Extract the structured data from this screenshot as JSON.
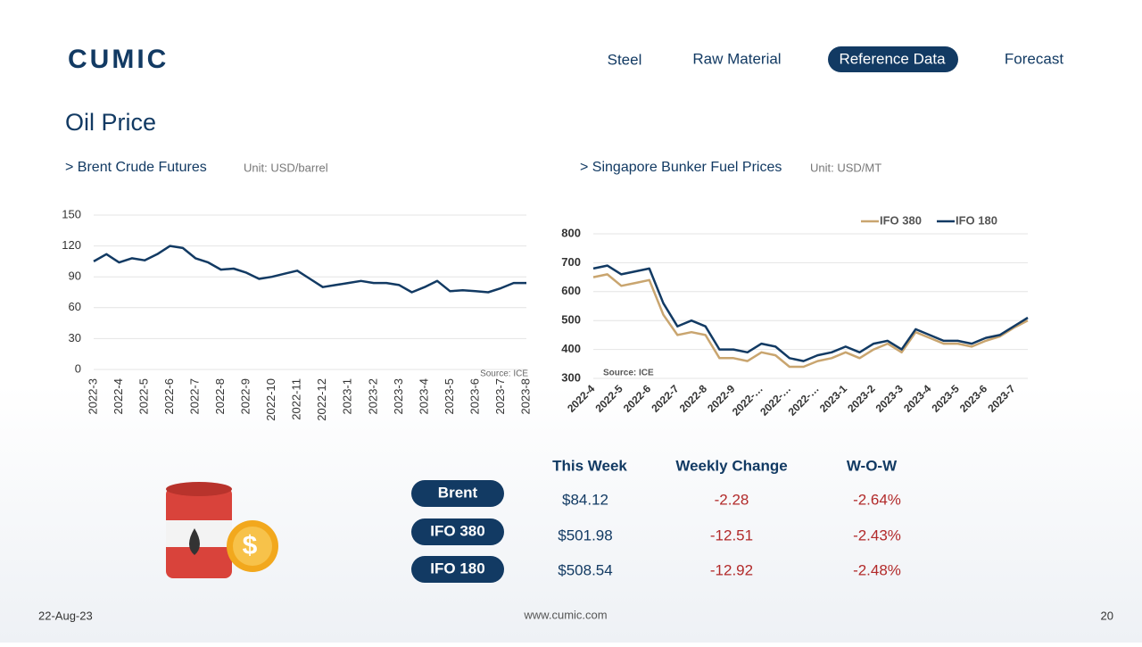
{
  "header": {
    "logo": "CUMIC",
    "nav": [
      "Steel",
      "Raw Material",
      "Reference Data",
      "Forecast"
    ],
    "title": "Oil Price"
  },
  "chart_data": [
    {
      "type": "line",
      "title": "> Brent Crude Futures",
      "unit": "Unit: USD/barrel",
      "source": "Source: ICE",
      "categories": [
        "2022-3",
        null,
        "2022-4",
        null,
        "2022-5",
        null,
        "2022-6",
        null,
        "2022-7",
        null,
        "2022-8",
        null,
        "2022-9",
        null,
        "2022-10",
        null,
        "2022-11",
        null,
        "2022-12",
        null,
        "2023-1",
        null,
        "2023-2",
        null,
        "2023-3",
        null,
        "2023-4",
        null,
        "2023-5",
        null,
        "2023-6",
        null,
        "2023-7",
        null,
        "2023-8"
      ],
      "values": [
        105,
        112,
        104,
        108,
        106,
        112,
        120,
        118,
        108,
        104,
        97,
        98,
        94,
        88,
        90,
        93,
        96,
        88,
        80,
        82,
        84,
        86,
        84,
        84,
        82,
        75,
        80,
        86,
        76,
        77,
        76,
        75,
        79,
        84,
        84
      ],
      "color": "#123a63",
      "ylim": [
        0,
        150
      ],
      "yticks": [
        0,
        30,
        60,
        90,
        120,
        150
      ],
      "grid": true
    },
    {
      "type": "line",
      "title": "> Singapore Bunker Fuel Prices",
      "unit": "Unit: USD/MT",
      "source": "Source: ICE",
      "categories": [
        "2022-4",
        null,
        "2022-5",
        null,
        "2022-6",
        null,
        "2022-7",
        null,
        "2022-8",
        null,
        "2022-9",
        null,
        "2022-…",
        null,
        "2022-…",
        null,
        "2022-…",
        null,
        "2023-1",
        null,
        "2023-2",
        null,
        "2023-3",
        null,
        "2023-4",
        null,
        "2023-5",
        null,
        "2023-6",
        null,
        "2023-7",
        null
      ],
      "series": [
        {
          "name": "IFO 380",
          "color": "#c9a56f",
          "values": [
            650,
            660,
            620,
            630,
            640,
            520,
            450,
            460,
            450,
            370,
            370,
            360,
            390,
            380,
            340,
            340,
            360,
            370,
            390,
            370,
            400,
            420,
            390,
            460,
            440,
            420,
            420,
            410,
            430,
            445,
            475,
            500
          ]
        },
        {
          "name": "IFO 180",
          "color": "#123a63",
          "values": [
            680,
            690,
            660,
            670,
            680,
            560,
            480,
            500,
            480,
            400,
            400,
            390,
            420,
            410,
            370,
            360,
            380,
            390,
            410,
            390,
            420,
            430,
            400,
            470,
            450,
            430,
            430,
            420,
            440,
            450,
            480,
            510
          ]
        }
      ],
      "ylim": [
        300,
        800
      ],
      "yticks": [
        300,
        400,
        500,
        600,
        700,
        800
      ],
      "grid": true
    }
  ],
  "table": {
    "headers": [
      "This Week",
      "Weekly Change",
      "W-O-W"
    ],
    "rows": [
      [
        "Brent",
        "$84.12",
        "-2.28",
        "-2.64%"
      ],
      [
        "IFO 380",
        "$501.98",
        "-12.51",
        "-2.43%"
      ],
      [
        "IFO 180",
        "$508.54",
        "-12.92",
        "-2.48%"
      ]
    ]
  },
  "footer": {
    "date": "22-Aug-23",
    "site": "www.cumic.com",
    "page": "20"
  }
}
